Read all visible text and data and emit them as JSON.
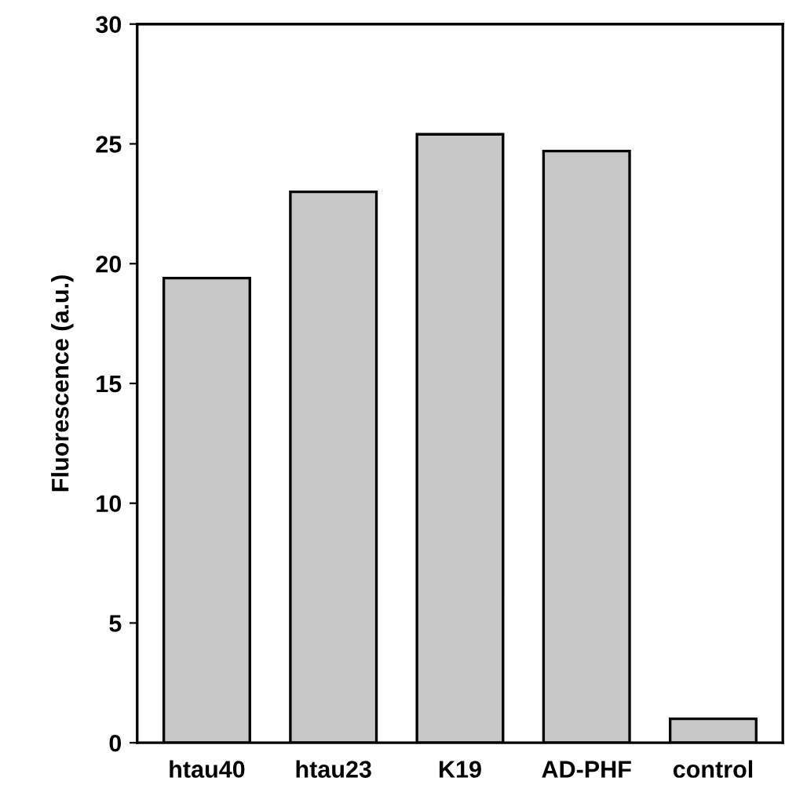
{
  "chart_data": {
    "type": "bar",
    "ylabel": "Fluorescence (a.u.)",
    "categories": [
      "htau40",
      "htau23",
      "K19",
      "AD-PHF",
      "control"
    ],
    "values": [
      19.4,
      23.0,
      25.4,
      24.7,
      1.0
    ],
    "color": "#c8c8c8",
    "ylim": [
      0,
      30
    ],
    "yticks": [
      0,
      5,
      10,
      15,
      20,
      25,
      30
    ],
    "grid": false
  }
}
